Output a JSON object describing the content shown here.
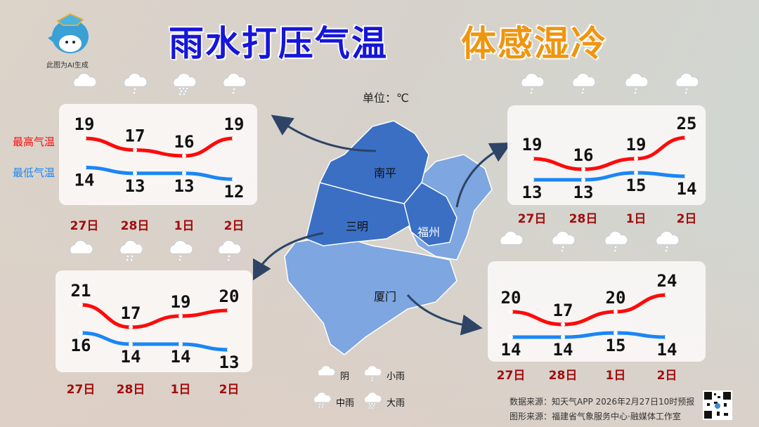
{
  "header": {
    "title_main": "雨水打压气温",
    "title_sub": "体感湿冷",
    "mascot_caption": "此图为AI生成",
    "unit": "单位：℃"
  },
  "legend_series": {
    "high": "最高气温",
    "low": "最低气温"
  },
  "weather_legend": [
    {
      "icon": "overcast-cloud-icon",
      "label": "阴",
      "drops": 0
    },
    {
      "icon": "light-rain-icon",
      "label": "小雨",
      "drops": 2
    },
    {
      "icon": "moderate-rain-icon",
      "label": "中雨",
      "drops": 4
    },
    {
      "icon": "heavy-rain-icon",
      "label": "大雨",
      "drops": 7
    }
  ],
  "colors": {
    "high": "#ff0a0a",
    "low": "#1a86f5",
    "title_main": "#1616d8",
    "title_sub": "#f0950f",
    "day": "#a00d0d",
    "map_dark": "#3a6fc4",
    "map_light": "#7ea6e0",
    "arrow": "#2d4466"
  },
  "map": {
    "cities": [
      "南平",
      "三明",
      "福州",
      "厦门"
    ]
  },
  "chart_data": [
    {
      "type": "line",
      "city": "南平",
      "categories": [
        "27日",
        "28日",
        "1日",
        "2日"
      ],
      "weather": [
        "阴",
        "小雨",
        "大雨",
        "小雨"
      ],
      "series": [
        {
          "name": "最高气温",
          "values": [
            19,
            17,
            16,
            19
          ]
        },
        {
          "name": "最低气温",
          "values": [
            14,
            13,
            13,
            12
          ]
        }
      ]
    },
    {
      "type": "line",
      "city": "福州",
      "categories": [
        "27日",
        "28日",
        "1日",
        "2日"
      ],
      "weather": [
        "小雨",
        "小雨",
        "小雨",
        "小雨"
      ],
      "series": [
        {
          "name": "最高气温",
          "values": [
            19,
            16,
            19,
            25
          ]
        },
        {
          "name": "最低气温",
          "values": [
            13,
            13,
            15,
            14
          ]
        }
      ]
    },
    {
      "type": "line",
      "city": "三明",
      "categories": [
        "27日",
        "28日",
        "1日",
        "2日"
      ],
      "weather": [
        "阴",
        "中雨",
        "小雨",
        "小雨"
      ],
      "series": [
        {
          "name": "最高气温",
          "values": [
            21,
            17,
            19,
            20
          ]
        },
        {
          "name": "最低气温",
          "values": [
            16,
            14,
            14,
            13
          ]
        }
      ]
    },
    {
      "type": "line",
      "city": "厦门",
      "categories": [
        "27日",
        "28日",
        "1日",
        "2日"
      ],
      "weather": [
        "阴",
        "小雨",
        "小雨",
        "小雨"
      ],
      "series": [
        {
          "name": "最高气温",
          "values": [
            20,
            17,
            20,
            24
          ]
        },
        {
          "name": "最低气温",
          "values": [
            14,
            14,
            15,
            14
          ]
        }
      ]
    }
  ],
  "footer": {
    "data_source": "数据来源：知天气APP 2026年2月27日10时预报",
    "graphic_source": "图形来源：福建省气象服务中心·融媒体工作室"
  }
}
